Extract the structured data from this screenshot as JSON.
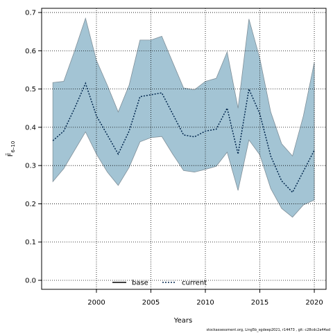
{
  "chart_data": {
    "type": "line",
    "x_label": "Years",
    "y_label": {
      "main": "F̄",
      "sub": "6–10"
    },
    "footer": "stockassessment.org, Ling5b_sgdeep2021, r14473 , git: c28cdc2a44ad",
    "x": [
      1996,
      1997,
      1998,
      1999,
      2000,
      2001,
      2002,
      2003,
      2004,
      2005,
      2006,
      2007,
      2008,
      2009,
      2010,
      2011,
      2012,
      2013,
      2014,
      2015,
      2016,
      2017,
      2018,
      2019,
      2020
    ],
    "series": [
      {
        "name": "current",
        "color": "#00264d",
        "band_color": "#a3c4d4",
        "band_edge": "#7f8f99",
        "values": [
          0.365,
          0.39,
          0.45,
          0.515,
          0.43,
          0.38,
          0.33,
          0.39,
          0.48,
          0.485,
          0.49,
          0.435,
          0.38,
          0.375,
          0.39,
          0.395,
          0.45,
          0.33,
          0.5,
          0.435,
          0.325,
          0.26,
          0.23,
          0.285,
          0.34
        ],
        "lower": [
          0.258,
          0.292,
          0.34,
          0.388,
          0.33,
          0.283,
          0.248,
          0.295,
          0.362,
          0.373,
          0.376,
          0.33,
          0.287,
          0.283,
          0.29,
          0.298,
          0.335,
          0.235,
          0.367,
          0.328,
          0.24,
          0.188,
          0.165,
          0.197,
          0.21
        ],
        "upper": [
          0.517,
          0.52,
          0.6,
          0.685,
          0.575,
          0.51,
          0.44,
          0.51,
          0.628,
          0.628,
          0.638,
          0.57,
          0.503,
          0.498,
          0.52,
          0.528,
          0.597,
          0.45,
          0.683,
          0.58,
          0.44,
          0.357,
          0.325,
          0.43,
          0.57
        ]
      }
    ],
    "legend": [
      {
        "name": "base",
        "color": "#000000",
        "style": "solid"
      },
      {
        "name": "current",
        "color": "#00264d",
        "style": "dotted"
      }
    ],
    "xlim": [
      1994.97,
      2021.08
    ],
    "ylim": [
      -0.0235,
      0.711
    ],
    "xticks": [
      2000,
      2005,
      2010,
      2015,
      2020
    ],
    "yticks": [
      {
        "value": 0,
        "label": "0.0"
      },
      0.1,
      0.2,
      0.3,
      0.4,
      0.5,
      0.6,
      0.7
    ],
    "grid": true
  }
}
